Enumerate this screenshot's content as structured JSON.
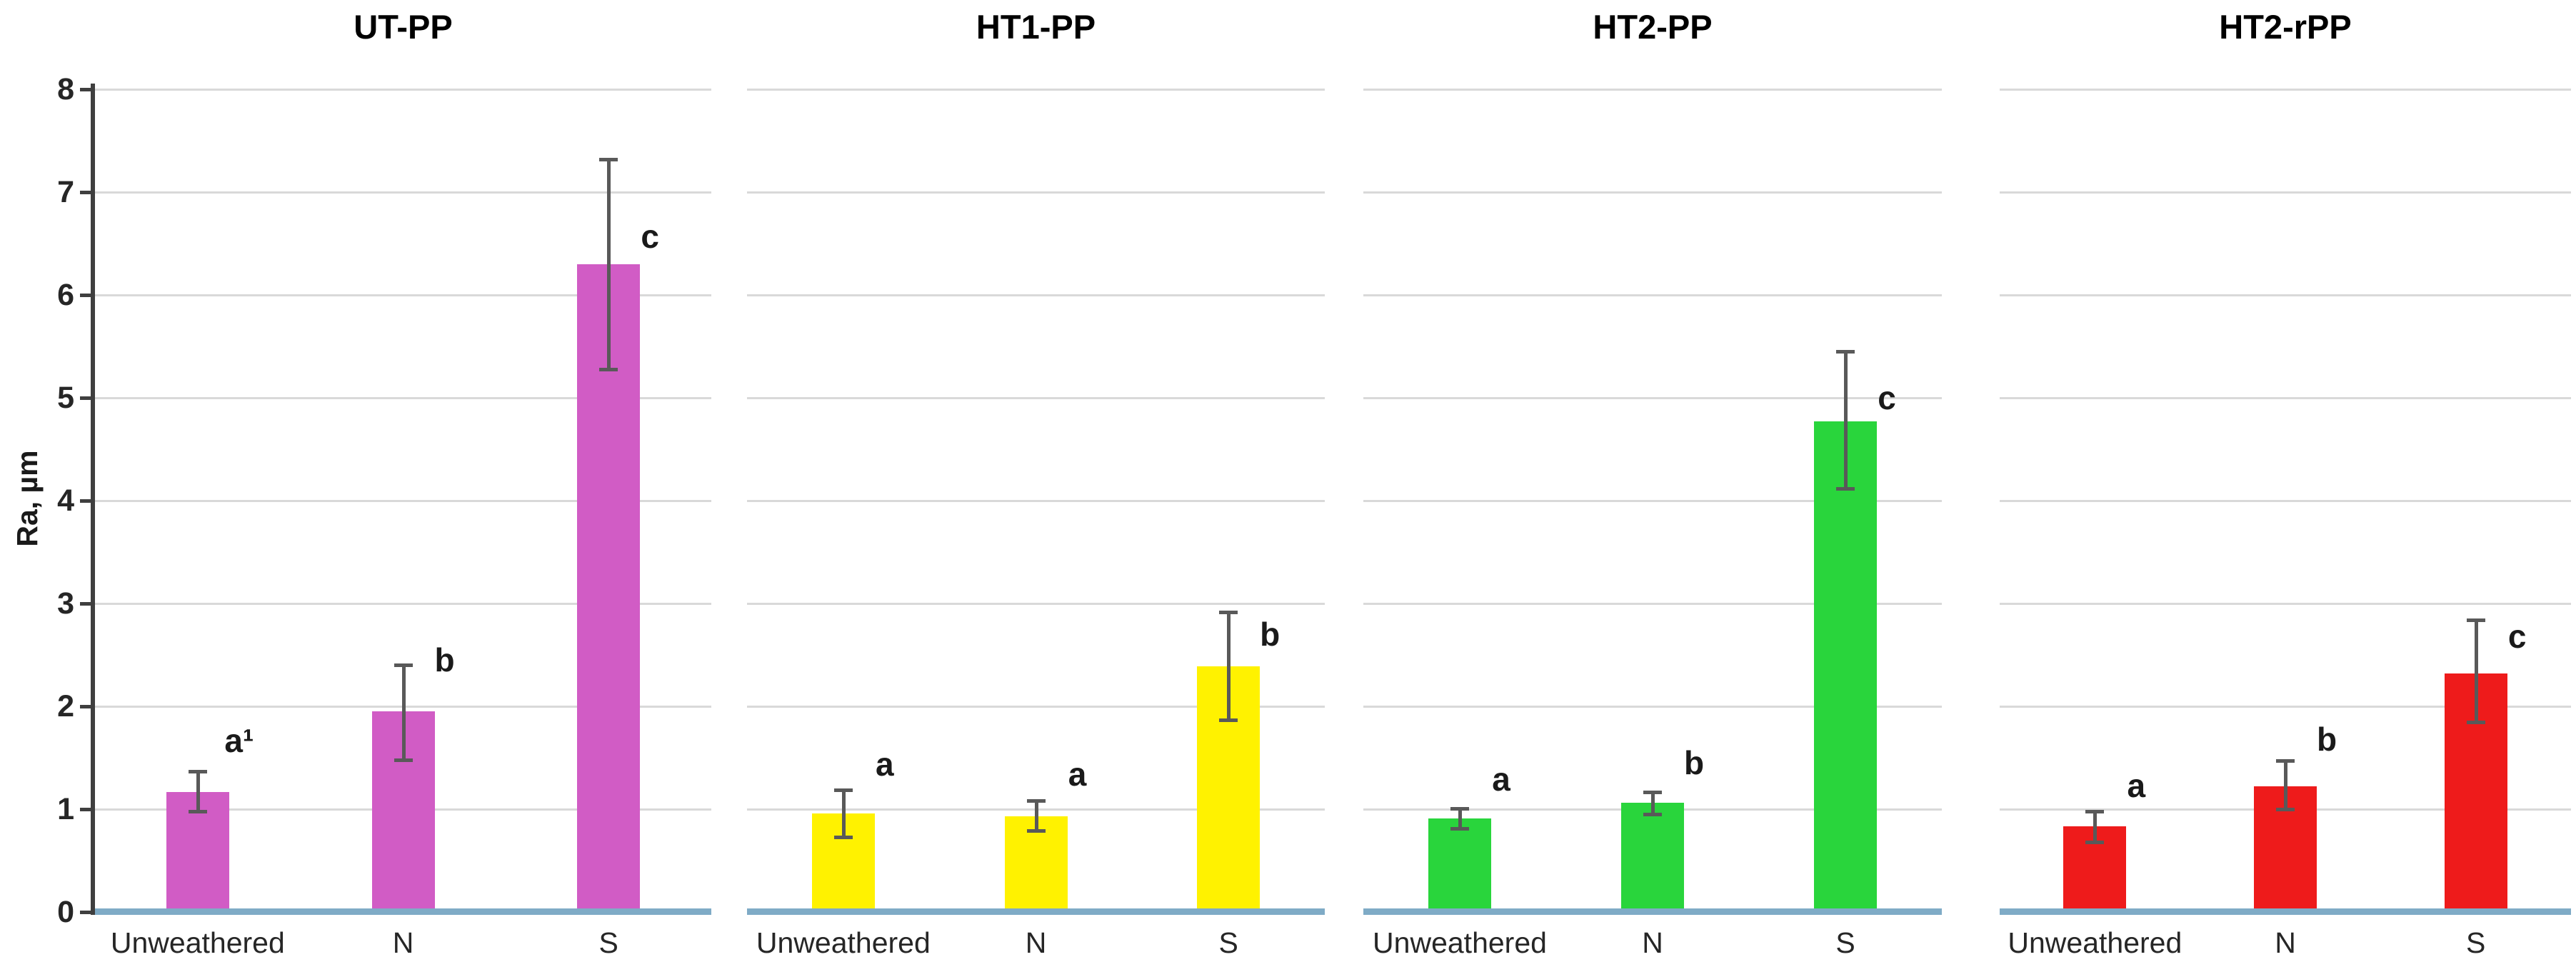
{
  "chart_data": {
    "type": "bar",
    "ylabel": "Ra, µm",
    "ylim": [
      0,
      8
    ],
    "yticks": [
      "0",
      "1",
      "2",
      "3",
      "4",
      "5",
      "6",
      "7",
      "8"
    ],
    "grid": "horizontal-light-gray",
    "legend": "none",
    "categories": [
      "Unweathered",
      "N",
      "S"
    ],
    "colors": {
      "axis": "#3f3f3f",
      "gridline": "#d9d9d9",
      "baseline": "#7fabc6",
      "error_bar": "#595959",
      "text": "#1a1a1a"
    },
    "panels": [
      {
        "title": "UT-PP",
        "bar_color": "#d15cc5",
        "bars": [
          {
            "category": "Unweathered",
            "value": 1.17,
            "err_low": 0.98,
            "err_high": 1.37,
            "sig_label": "a¹",
            "sig_label_y": 1.67
          },
          {
            "category": "N",
            "value": 1.95,
            "err_low": 1.48,
            "err_high": 2.4,
            "sig_label": "b",
            "sig_label_y": 2.45
          },
          {
            "category": "S",
            "value": 6.3,
            "err_low": 5.28,
            "err_high": 7.32,
            "sig_label": "c",
            "sig_label_y": 6.57
          }
        ]
      },
      {
        "title": "HT1-PP",
        "bar_color": "#fff200",
        "bars": [
          {
            "category": "Unweathered",
            "value": 0.96,
            "err_low": 0.73,
            "err_high": 1.19,
            "sig_label": "a",
            "sig_label_y": 1.44
          },
          {
            "category": "N",
            "value": 0.93,
            "err_low": 0.79,
            "err_high": 1.08,
            "sig_label": "a",
            "sig_label_y": 1.34
          },
          {
            "category": "S",
            "value": 2.39,
            "err_low": 1.87,
            "err_high": 2.92,
            "sig_label": "b",
            "sig_label_y": 2.7
          }
        ]
      },
      {
        "title": "HT2-PP",
        "bar_color": "#29d53c",
        "bars": [
          {
            "category": "Unweathered",
            "value": 0.91,
            "err_low": 0.81,
            "err_high": 1.01,
            "sig_label": "a",
            "sig_label_y": 1.29
          },
          {
            "category": "N",
            "value": 1.06,
            "err_low": 0.95,
            "err_high": 1.17,
            "sig_label": "b",
            "sig_label_y": 1.45
          },
          {
            "category": "S",
            "value": 4.77,
            "err_low": 4.12,
            "err_high": 5.45,
            "sig_label": "c",
            "sig_label_y": 5.0
          }
        ]
      },
      {
        "title": "HT2-rPP",
        "bar_color": "#ee1b1b",
        "bars": [
          {
            "category": "Unweathered",
            "value": 0.83,
            "err_low": 0.68,
            "err_high": 0.98,
            "sig_label": "a",
            "sig_label_y": 1.23
          },
          {
            "category": "N",
            "value": 1.22,
            "err_low": 1.0,
            "err_high": 1.47,
            "sig_label": "b",
            "sig_label_y": 1.68
          },
          {
            "category": "S",
            "value": 2.32,
            "err_low": 1.85,
            "err_high": 2.84,
            "sig_label": "c",
            "sig_label_y": 2.68
          }
        ]
      }
    ]
  }
}
